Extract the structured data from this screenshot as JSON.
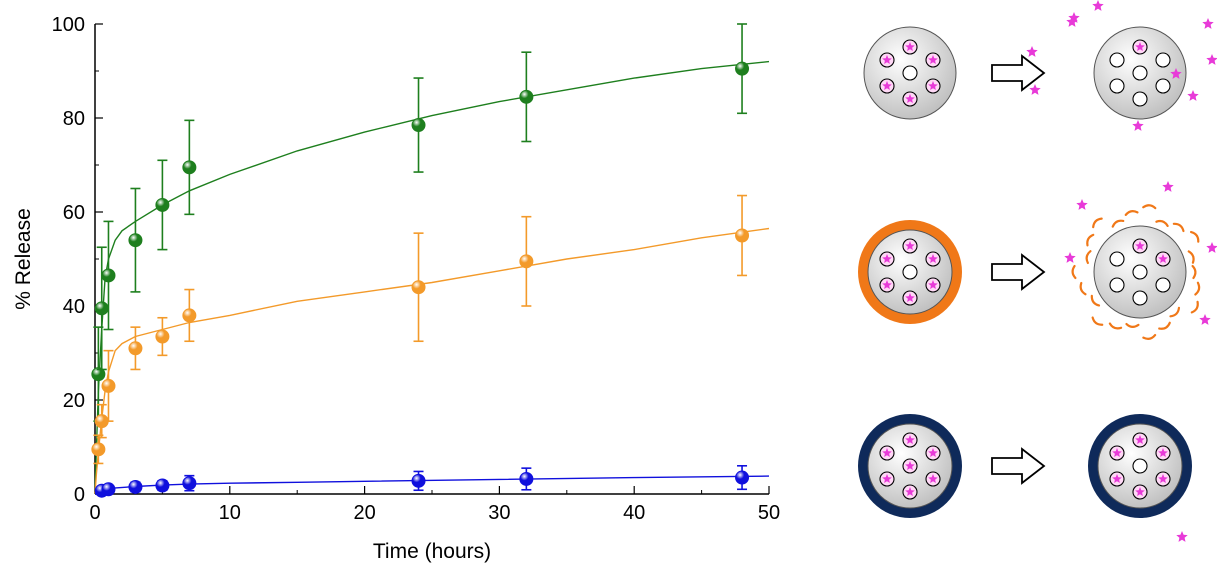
{
  "chart_data": {
    "type": "scatter",
    "title": "",
    "xlabel": "Time (hours)",
    "ylabel": "% Release",
    "xlim": [
      0,
      50
    ],
    "ylim": [
      0,
      100
    ],
    "x_ticks": [
      0,
      10,
      20,
      30,
      40,
      50
    ],
    "y_ticks": [
      0,
      20,
      40,
      60,
      80,
      100
    ],
    "grid": false,
    "legend": "none",
    "series": [
      {
        "color": "#1e7f1e",
        "points": [
          {
            "x": 0.25,
            "y": 25.5,
            "err": 10
          },
          {
            "x": 0.5,
            "y": 39.5,
            "err": 13
          },
          {
            "x": 1,
            "y": 46.5,
            "err": 11.5
          },
          {
            "x": 3,
            "y": 54,
            "err": 11
          },
          {
            "x": 5,
            "y": 61.5,
            "err": 9.5
          },
          {
            "x": 7,
            "y": 69.5,
            "err": 10
          },
          {
            "x": 24,
            "y": 78.5,
            "err": 10
          },
          {
            "x": 32,
            "y": 84.5,
            "err": 9.5
          },
          {
            "x": 48,
            "y": 90.5,
            "err": 9.5
          }
        ],
        "fit": [
          [
            0,
            0
          ],
          [
            0.1,
            9
          ],
          [
            0.25,
            22
          ],
          [
            0.5,
            35
          ],
          [
            0.75,
            46
          ],
          [
            1,
            50
          ],
          [
            1.5,
            54
          ],
          [
            2,
            56
          ],
          [
            3,
            58
          ],
          [
            5,
            61.5
          ],
          [
            7,
            64.5
          ],
          [
            10,
            68
          ],
          [
            15,
            73
          ],
          [
            20,
            77
          ],
          [
            25,
            80.5
          ],
          [
            30,
            83.5
          ],
          [
            35,
            86
          ],
          [
            40,
            88.5
          ],
          [
            45,
            90.5
          ],
          [
            50,
            92
          ]
        ]
      },
      {
        "color": "#f39a2a",
        "points": [
          {
            "x": 0.25,
            "y": 9.5,
            "err": 3
          },
          {
            "x": 0.5,
            "y": 15.5,
            "err": 3.5
          },
          {
            "x": 1,
            "y": 23,
            "err": 7.5
          },
          {
            "x": 3,
            "y": 31,
            "err": 4.5
          },
          {
            "x": 5,
            "y": 33.5,
            "err": 4
          },
          {
            "x": 7,
            "y": 38,
            "err": 5.5
          },
          {
            "x": 24,
            "y": 44,
            "err": 11.5
          },
          {
            "x": 32,
            "y": 49.5,
            "err": 9.5
          },
          {
            "x": 48,
            "y": 55,
            "err": 8.5
          }
        ],
        "fit": [
          [
            0,
            0
          ],
          [
            0.1,
            4
          ],
          [
            0.25,
            9
          ],
          [
            0.5,
            16
          ],
          [
            0.75,
            22
          ],
          [
            1,
            26
          ],
          [
            1.5,
            30.5
          ],
          [
            2,
            32
          ],
          [
            3,
            33.5
          ],
          [
            5,
            35
          ],
          [
            7,
            36.5
          ],
          [
            10,
            38
          ],
          [
            15,
            41
          ],
          [
            20,
            43
          ],
          [
            25,
            45
          ],
          [
            30,
            47.5
          ],
          [
            35,
            50
          ],
          [
            40,
            52
          ],
          [
            45,
            54.5
          ],
          [
            50,
            56.5
          ]
        ]
      },
      {
        "color": "#1010dd",
        "points": [
          {
            "x": 0.5,
            "y": 0.7,
            "err": 0.5
          },
          {
            "x": 1,
            "y": 1,
            "err": 0.5
          },
          {
            "x": 3,
            "y": 1.5,
            "err": 1
          },
          {
            "x": 5,
            "y": 1.8,
            "err": 1
          },
          {
            "x": 7,
            "y": 2.3,
            "err": 1.6
          },
          {
            "x": 24,
            "y": 2.8,
            "err": 2
          },
          {
            "x": 32,
            "y": 3.2,
            "err": 2.3
          },
          {
            "x": 48,
            "y": 3.5,
            "err": 2.5
          }
        ],
        "fit": [
          [
            0,
            0
          ],
          [
            0.5,
            0.8
          ],
          [
            1,
            1.2
          ],
          [
            3,
            1.6
          ],
          [
            5,
            1.9
          ],
          [
            7,
            2.1
          ],
          [
            10,
            2.3
          ],
          [
            15,
            2.5
          ],
          [
            20,
            2.7
          ],
          [
            30,
            3.1
          ],
          [
            40,
            3.5
          ],
          [
            50,
            3.8
          ]
        ]
      }
    ]
  },
  "schematic": {
    "rows": [
      {
        "shell_color": "",
        "loaded_before": 6,
        "remaining_after": 1,
        "released_stars": 9,
        "coated_after": false
      },
      {
        "shell_color": "#f07818",
        "loaded_before": 6,
        "remaining_after": 2,
        "released_stars": 6,
        "coated_after": true
      },
      {
        "shell_color": "#0f2a5a",
        "loaded_before": 7,
        "remaining_after": 6,
        "released_stars": 1,
        "coated_after": false
      }
    ],
    "colors": {
      "particle_fill": "#d9d9d9",
      "drug": "#e83ad8",
      "shell_orange": "#f07818",
      "shell_navy": "#0f2a5a"
    }
  }
}
